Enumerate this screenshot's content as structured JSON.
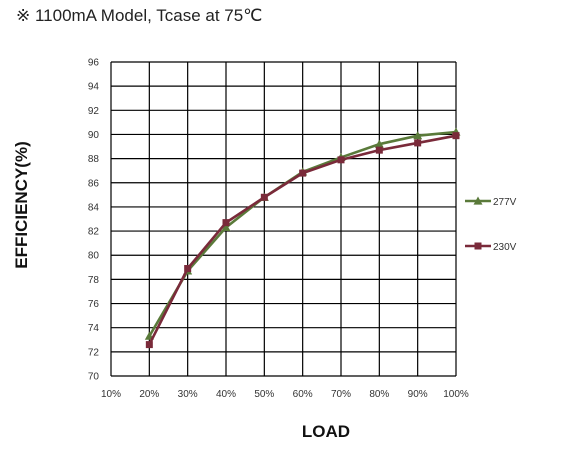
{
  "header": {
    "title": "※ 1100mA Model, Tcase at 75℃"
  },
  "chart_data": {
    "type": "line",
    "title": "※ 1100mA Model, Tcase at 75℃",
    "xlabel": "LOAD",
    "ylabel": "EFFICIENCY(%)",
    "categories": [
      "10%",
      "20%",
      "30%",
      "40%",
      "50%",
      "60%",
      "70%",
      "80%",
      "90%",
      "100%"
    ],
    "x_values": [
      10,
      20,
      30,
      40,
      50,
      60,
      70,
      80,
      90,
      100
    ],
    "xlim": [
      10,
      100
    ],
    "ylim": [
      70,
      96
    ],
    "yticks": [
      "70",
      "72",
      "74",
      "76",
      "78",
      "80",
      "82",
      "84",
      "86",
      "88",
      "90",
      "92",
      "94",
      "96"
    ],
    "grid": "horizontal",
    "legend_position": "right",
    "series": [
      {
        "name": "277V",
        "marker": "triangle",
        "color": "#5a7a3a",
        "x": [
          20,
          30,
          40,
          50,
          60,
          70,
          80,
          90,
          100
        ],
        "values": [
          73.3,
          78.7,
          82.3,
          84.8,
          86.9,
          88.1,
          89.2,
          89.9,
          90.2
        ]
      },
      {
        "name": "230V",
        "marker": "square",
        "color": "#7a2a3a",
        "x": [
          20,
          30,
          40,
          50,
          60,
          70,
          80,
          90,
          100
        ],
        "values": [
          72.6,
          78.9,
          82.7,
          84.8,
          86.8,
          87.9,
          88.7,
          89.3,
          89.9
        ]
      }
    ]
  }
}
